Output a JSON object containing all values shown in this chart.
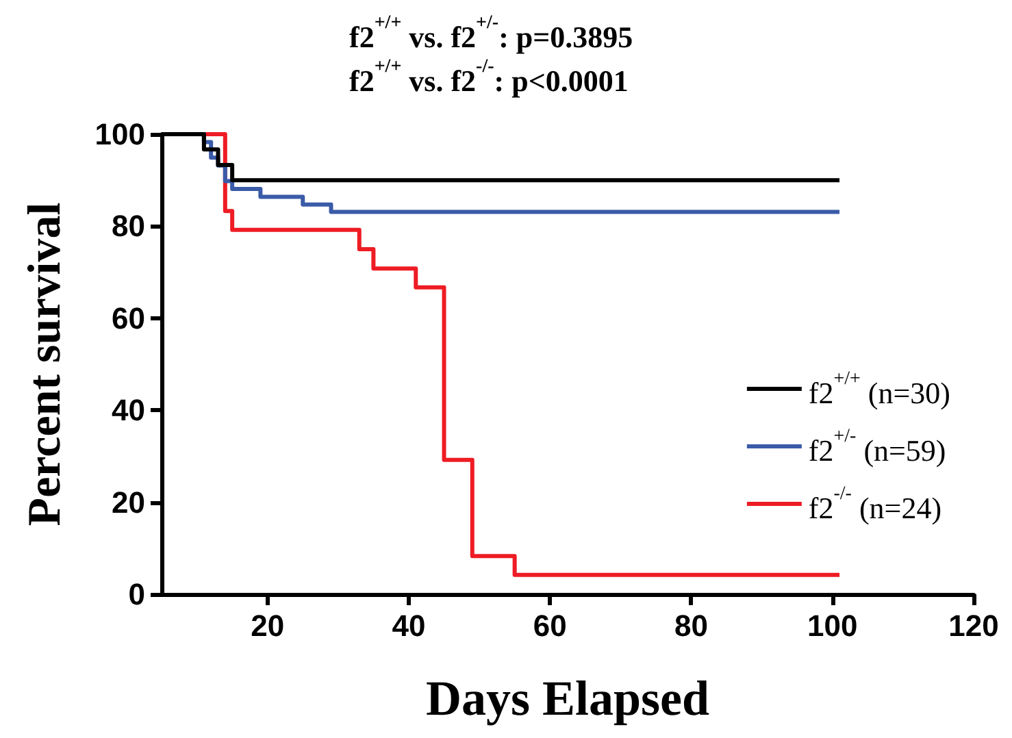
{
  "chart_data": {
    "type": "step",
    "xlabel": "Days Elapsed",
    "ylabel": "Percent survival",
    "annotations": [
      "f2$^{+/+}$ vs. f2$^{+/-}$: p=0.3895",
      "f2$^{+/+}$ vs. f2$^{-/-}$: p<0.0001"
    ],
    "series": [
      {
        "name": "f2$^{+/+}$ (n=30)",
        "color": "#000000",
        "x": [
          5,
          11,
          13,
          15,
          101
        ],
        "values": [
          100,
          96.7,
          93.3,
          90,
          90
        ]
      },
      {
        "name": "f2$^{+/-}$ (n=59)",
        "color": "#3a5ba8",
        "x": [
          5,
          11,
          12,
          13,
          14,
          15,
          19,
          25,
          29,
          101
        ],
        "values": [
          100,
          98.3,
          94.9,
          93.2,
          89.8,
          88.1,
          86.4,
          84.7,
          83.1,
          83.1
        ]
      },
      {
        "name": "f2$^{-/-}$ (n=24)",
        "color": "#ee1c24",
        "x": [
          5,
          14,
          15,
          33,
          35,
          41,
          45,
          49,
          55,
          101
        ],
        "values": [
          100,
          83.3,
          79.2,
          75,
          70.8,
          66.7,
          29.2,
          8.3,
          4.2,
          4.2
        ]
      }
    ],
    "xlim": [
      5,
      120
    ],
    "xticks": [
      20,
      40,
      60,
      80,
      100,
      120
    ],
    "ylim": [
      0,
      100
    ],
    "yticks": [
      0,
      20,
      40,
      60,
      80,
      100
    ],
    "grid": false,
    "legend": "right",
    "marker": "none",
    "line_style": "solid"
  }
}
